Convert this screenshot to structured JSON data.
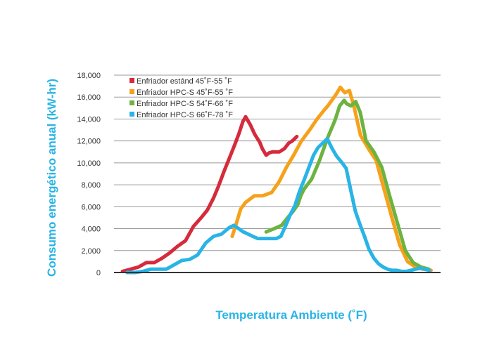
{
  "chart_data": {
    "type": "line",
    "title": "",
    "xlabel": "Temperatura Ambiente (˚F)",
    "ylabel": "Consumo energético anual (kW-hr)",
    "ylim": [
      0,
      18000
    ],
    "xlim": [
      0,
      100
    ],
    "y_ticks": [
      "0",
      "2,000",
      "4,000",
      "6,000",
      "8,000",
      "10,000",
      "12,000",
      "14,000",
      "16,000",
      "18,000"
    ],
    "y_tick_values": [
      0,
      2000,
      4000,
      6000,
      8000,
      10000,
      12000,
      14000,
      16000,
      18000
    ],
    "grid": true,
    "legend_position": "top-left",
    "label_color": "#29b4e6",
    "series": [
      {
        "name": "Enfriador estánd 45˚F-55 ˚F",
        "color": "#d52b3c",
        "x": [
          2.6,
          5.1,
          7.5,
          9.9,
          12.3,
          14.7,
          17.1,
          19.5,
          21.9,
          24.3,
          26.7,
          28.6,
          30.5,
          31.9,
          33.8,
          35.7,
          36.9,
          38.3,
          39.5,
          40.3,
          41.7,
          43.1,
          44.6,
          45.4,
          46.6,
          47.5,
          48.5,
          50.6,
          52.2,
          53.5,
          54.6,
          56.0
        ],
        "y": [
          100,
          300,
          500,
          900,
          900,
          1300,
          1800,
          2400,
          2900,
          4200,
          5000,
          5700,
          6800,
          7800,
          9300,
          10700,
          11600,
          12700,
          13800,
          14200,
          13500,
          12600,
          11900,
          11300,
          10700,
          10900,
          11000,
          11000,
          11300,
          11800,
          12000,
          12400
        ]
      },
      {
        "name": "Enfriador HPC-S 45˚F-55 ˚F",
        "color": "#f7a11a",
        "x": [
          36.2,
          37.4,
          38.8,
          40.3,
          43.0,
          45.6,
          48.3,
          50.6,
          52.8,
          55.0,
          57.4,
          59.9,
          62.2,
          64.3,
          65.5,
          67.9,
          69.3,
          70.7,
          72.1,
          73.6,
          75.5,
          77.9,
          80.3,
          82.7,
          85.1,
          87.5,
          89.9,
          92.3,
          94.7,
          97.1
        ],
        "y": [
          3300,
          4400,
          5800,
          6400,
          7000,
          7000,
          7300,
          8300,
          9600,
          10700,
          12000,
          13000,
          14000,
          14800,
          15200,
          16200,
          16900,
          16400,
          16600,
          15000,
          12500,
          11300,
          10200,
          7600,
          5000,
          2500,
          1000,
          500,
          300,
          200
        ]
      },
      {
        "name": "Enfriador HPC-S 54˚F-66 ˚F",
        "color": "#6db33f",
        "x": [
          46.6,
          49.0,
          51.3,
          53.2,
          54.9,
          56.3,
          57.2,
          58.2,
          60.5,
          62.9,
          65.3,
          67.7,
          69.1,
          70.5,
          71.2,
          72.6,
          74.0,
          75.4,
          77.2,
          79.6,
          82.0,
          84.4,
          86.8,
          89.2,
          91.6,
          94.0,
          96.4
        ],
        "y": [
          3700,
          4000,
          4300,
          5000,
          5600,
          6200,
          7000,
          7600,
          8500,
          10200,
          12200,
          13900,
          15200,
          15700,
          15400,
          15200,
          15600,
          14600,
          12000,
          11000,
          9600,
          7000,
          4500,
          2000,
          900,
          500,
          300
        ]
      },
      {
        "name": "Enfriador HPC-S 66˚F-78 ˚F",
        "color": "#29b4e6",
        "x": [
          4.0,
          6.4,
          8.8,
          11.2,
          13.6,
          16.0,
          18.4,
          20.8,
          23.2,
          25.6,
          28.1,
          30.5,
          32.9,
          35.3,
          36.7,
          38.2,
          39.6,
          41.1,
          42.5,
          44.0,
          45.4,
          46.8,
          48.3,
          49.7,
          51.1,
          52.6,
          54.0,
          55.4,
          56.8,
          58.3,
          59.7,
          61.1,
          62.5,
          63.9,
          65.3,
          66.8,
          68.2,
          69.6,
          71.1,
          72.5,
          73.9,
          75.3,
          76.7,
          78.1,
          79.6,
          81.0,
          82.4,
          83.8,
          85.2,
          86.6,
          88.1,
          89.5,
          90.9,
          92.3,
          93.8,
          95.2,
          96.6
        ],
        "y": [
          0,
          0,
          100,
          300,
          300,
          300,
          700,
          1100,
          1200,
          1600,
          2700,
          3300,
          3500,
          4100,
          4300,
          4000,
          3700,
          3500,
          3300,
          3100,
          3100,
          3100,
          3100,
          3100,
          3300,
          4300,
          5300,
          6100,
          7400,
          8500,
          9600,
          10700,
          11400,
          11800,
          12200,
          11300,
          10600,
          10100,
          9500,
          7500,
          5600,
          4400,
          3300,
          2100,
          1300,
          800,
          500,
          300,
          200,
          200,
          100,
          100,
          200,
          300,
          400,
          300,
          200
        ]
      }
    ]
  }
}
